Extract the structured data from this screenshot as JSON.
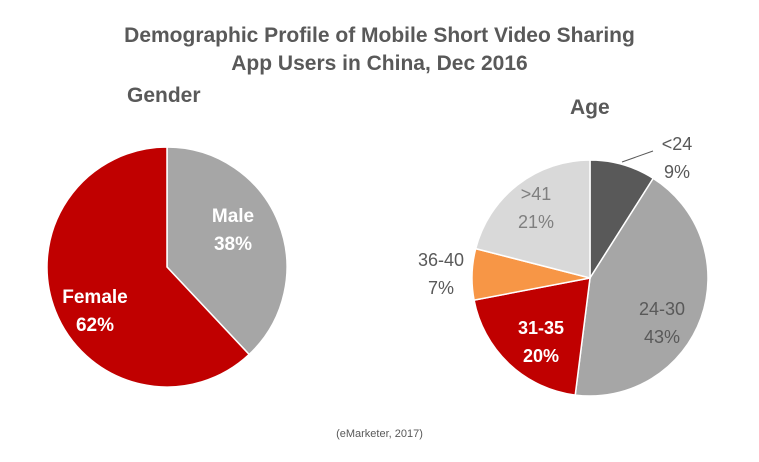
{
  "title_line1": "Demographic Profile of Mobile Short Video Sharing",
  "title_line2": "App Users in China, Dec 2016",
  "source": "(eMarketer, 2017)",
  "chart_data": [
    {
      "type": "pie",
      "title": "Gender",
      "slices": [
        {
          "label": "Male",
          "value": 38,
          "value_text": "38%",
          "color": "#a6a6a6",
          "text_color": "#ffffff"
        },
        {
          "label": "Female",
          "value": 62,
          "value_text": "62%",
          "color": "#c00000",
          "text_color": "#ffffff"
        }
      ]
    },
    {
      "type": "pie",
      "title": "Age",
      "slices": [
        {
          "label": "<24",
          "value": 9,
          "value_text": "9%",
          "color": "#595959",
          "text_color": "#595959"
        },
        {
          "label": "24-30",
          "value": 43,
          "value_text": "43%",
          "color": "#a6a6a6",
          "text_color": "#595959"
        },
        {
          "label": "31-35",
          "value": 20,
          "value_text": "20%",
          "color": "#c00000",
          "text_color": "#ffffff"
        },
        {
          "label": "36-40",
          "value": 7,
          "value_text": "7%",
          "color": "#f79646",
          "text_color": "#595959"
        },
        {
          "label": ">41",
          "value": 21,
          "value_text": "21%",
          "color": "#d9d9d9",
          "text_color": "#7f7f7f"
        }
      ]
    }
  ]
}
